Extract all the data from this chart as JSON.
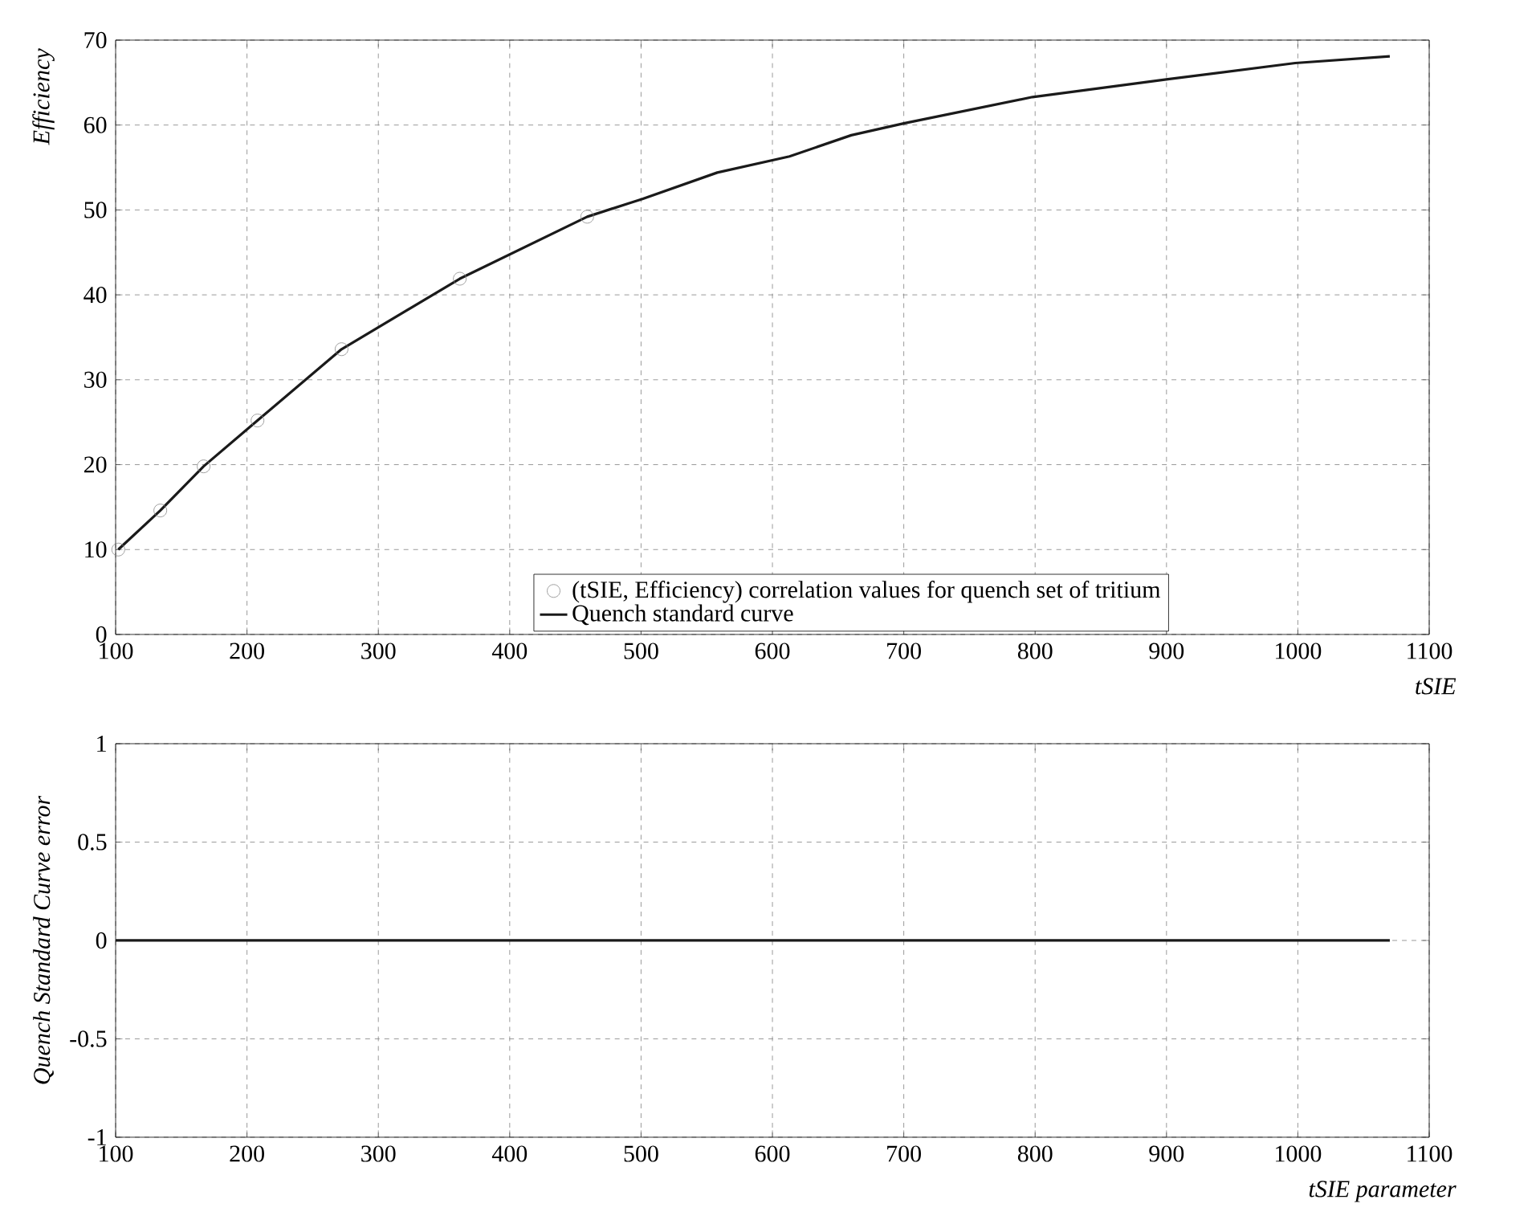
{
  "chart_data": [
    {
      "type": "line",
      "xlabel": "tSIE",
      "ylabel": "Efficiency",
      "xlim": [
        100,
        1100
      ],
      "ylim": [
        0,
        70
      ],
      "xticks": [
        100,
        200,
        300,
        400,
        500,
        600,
        700,
        800,
        900,
        1000,
        1100
      ],
      "yticks": [
        0,
        10,
        20,
        30,
        40,
        50,
        60,
        70
      ],
      "grid": true,
      "legend": "bottom",
      "series": [
        {
          "name": "(tSIE, Efficiency) correlation values for quench set of tritium",
          "type": "scatter",
          "marker": "circle",
          "color": "#888888",
          "x": [
            102,
            134,
            167,
            208,
            272,
            362,
            459
          ],
          "values": [
            10,
            14.6,
            19.8,
            25.2,
            33.6,
            41.9,
            49.2
          ]
        },
        {
          "name": "Quench standard curve",
          "type": "line",
          "color": "#1a1a1a",
          "x": [
            102,
            134,
            167,
            208,
            272,
            362,
            459,
            501,
            558,
            613,
            660,
            700,
            798,
            901,
            998,
            1070
          ],
          "values": [
            10,
            14.6,
            19.8,
            25.2,
            33.6,
            41.9,
            49.2,
            51.3,
            54.4,
            56.3,
            58.8,
            60.2,
            63.3,
            65.4,
            67.3,
            68.1
          ]
        }
      ]
    },
    {
      "type": "line",
      "xlabel": "tSIE parameter",
      "ylabel": "Quench Standard Curve error",
      "xlim": [
        100,
        1100
      ],
      "ylim": [
        -1,
        1
      ],
      "xticks": [
        100,
        200,
        300,
        400,
        500,
        600,
        700,
        800,
        900,
        1000,
        1100
      ],
      "yticks": [
        -1,
        -0.5,
        0,
        0.5,
        1
      ],
      "grid": true,
      "series": [
        {
          "color": "#1a1a1a",
          "x": [
            100,
            1070
          ],
          "values": [
            0,
            0
          ]
        }
      ]
    }
  ]
}
